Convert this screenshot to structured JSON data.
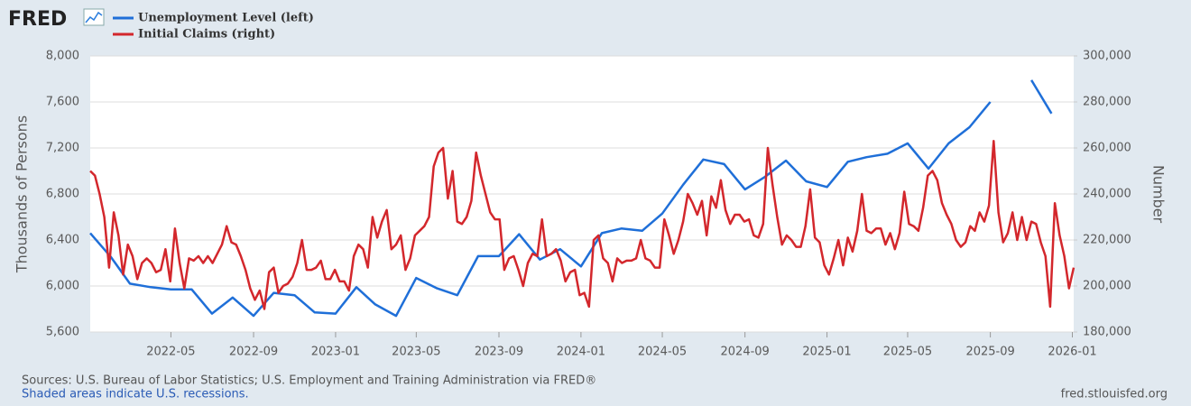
{
  "logo": "FRED",
  "chart_data": {
    "type": "line",
    "ylabel": "Thousands of Persons",
    "y2label": "Number",
    "xlim": [
      "2022-01-01",
      "2026-01-03"
    ],
    "xticks": [
      "2022-05",
      "2022-09",
      "2023-01",
      "2023-05",
      "2023-09",
      "2024-01",
      "2024-05",
      "2024-09",
      "2025-01",
      "2025-05",
      "2025-09",
      "2026-01"
    ],
    "ylim": [
      5600,
      8000
    ],
    "yticks": [
      {
        "value": 5600,
        "label": "5,600"
      },
      {
        "value": 6000,
        "label": "6,000"
      },
      {
        "value": 6400,
        "label": "6,400"
      },
      {
        "value": 6800,
        "label": "6,800"
      },
      {
        "value": 7200,
        "label": "7,200"
      },
      {
        "value": 7600,
        "label": "7,600"
      },
      {
        "value": 8000,
        "label": "8,000"
      }
    ],
    "y2lim": [
      180000,
      300000
    ],
    "y2ticks": [
      {
        "value": 180000,
        "label": "180,000"
      },
      {
        "value": 200000,
        "label": "200,000"
      },
      {
        "value": 220000,
        "label": "220,000"
      },
      {
        "value": 240000,
        "label": "240,000"
      },
      {
        "value": 260000,
        "label": "260,000"
      },
      {
        "value": 280000,
        "label": "280,000"
      },
      {
        "value": 300000,
        "label": "300,000"
      }
    ],
    "grid": true,
    "series": [
      {
        "name": "Unemployment Level (left)",
        "color": "#1f6fd8",
        "axis": "y",
        "x": [
          "2022-01",
          "2022-02",
          "2022-03",
          "2022-04",
          "2022-05",
          "2022-06",
          "2022-07",
          "2022-08",
          "2022-09",
          "2022-10",
          "2022-11",
          "2022-12",
          "2023-01",
          "2023-02",
          "2023-03",
          "2023-04",
          "2023-05",
          "2023-06",
          "2023-07",
          "2023-08",
          "2023-09",
          "2023-10",
          "2023-11",
          "2023-12",
          "2024-01",
          "2024-02",
          "2024-03",
          "2024-04",
          "2024-05",
          "2024-06",
          "2024-07",
          "2024-08",
          "2024-09",
          "2024-10",
          "2024-11",
          "2024-12",
          "2025-01",
          "2025-02",
          "2025-03",
          "2025-04",
          "2025-05",
          "2025-06",
          "2025-07",
          "2025-08",
          "2025-09",
          "2025-10",
          "2025-11",
          "2025-12"
        ],
        "values": [
          6460,
          6250,
          6020,
          5990,
          5970,
          5970,
          5760,
          5900,
          5740,
          5940,
          5920,
          5770,
          5760,
          5990,
          5840,
          5740,
          6070,
          5980,
          5920,
          6260,
          6260,
          6450,
          6230,
          6320,
          6170,
          6460,
          6500,
          6480,
          6630,
          6880,
          7100,
          7060,
          6840,
          6950,
          7090,
          6910,
          6860,
          7080,
          7120,
          7150,
          7240,
          7020,
          7240,
          7380,
          7600,
          null,
          7790,
          7500
        ]
      },
      {
        "name": "Initial Claims (right)",
        "color": "#d3272c",
        "axis": "y2",
        "x": [
          "2022-01-01",
          "2022-01-08",
          "2022-01-15",
          "2022-01-22",
          "2022-01-29",
          "2022-02-05",
          "2022-02-12",
          "2022-02-19",
          "2022-02-26",
          "2022-03-05",
          "2022-03-12",
          "2022-03-19",
          "2022-03-26",
          "2022-04-02",
          "2022-04-09",
          "2022-04-16",
          "2022-04-23",
          "2022-04-30",
          "2022-05-07",
          "2022-05-14",
          "2022-05-21",
          "2022-05-28",
          "2022-06-04",
          "2022-06-11",
          "2022-06-18",
          "2022-06-25",
          "2022-07-02",
          "2022-07-09",
          "2022-07-16",
          "2022-07-23",
          "2022-07-30",
          "2022-08-06",
          "2022-08-13",
          "2022-08-20",
          "2022-08-27",
          "2022-09-03",
          "2022-09-10",
          "2022-09-17",
          "2022-09-24",
          "2022-10-01",
          "2022-10-08",
          "2022-10-15",
          "2022-10-22",
          "2022-10-29",
          "2022-11-05",
          "2022-11-12",
          "2022-11-19",
          "2022-11-26",
          "2022-12-03",
          "2022-12-10",
          "2022-12-17",
          "2022-12-24",
          "2022-12-31",
          "2023-01-07",
          "2023-01-14",
          "2023-01-21",
          "2023-01-28",
          "2023-02-04",
          "2023-02-11",
          "2023-02-18",
          "2023-02-25",
          "2023-03-04",
          "2023-03-11",
          "2023-03-18",
          "2023-03-25",
          "2023-04-01",
          "2023-04-08",
          "2023-04-15",
          "2023-04-22",
          "2023-04-29",
          "2023-05-06",
          "2023-05-13",
          "2023-05-20",
          "2023-05-27",
          "2023-06-03",
          "2023-06-10",
          "2023-06-17",
          "2023-06-24",
          "2023-07-01",
          "2023-07-08",
          "2023-07-15",
          "2023-07-22",
          "2023-07-29",
          "2023-08-05",
          "2023-08-12",
          "2023-08-19",
          "2023-08-26",
          "2023-09-02",
          "2023-09-09",
          "2023-09-16",
          "2023-09-23",
          "2023-09-30",
          "2023-10-07",
          "2023-10-14",
          "2023-10-21",
          "2023-10-28",
          "2023-11-04",
          "2023-11-11",
          "2023-11-18",
          "2023-11-25",
          "2023-12-02",
          "2023-12-09",
          "2023-12-16",
          "2023-12-23",
          "2023-12-30",
          "2024-01-06",
          "2024-01-13",
          "2024-01-20",
          "2024-01-27",
          "2024-02-03",
          "2024-02-10",
          "2024-02-17",
          "2024-02-24",
          "2024-03-02",
          "2024-03-09",
          "2024-03-16",
          "2024-03-23",
          "2024-03-30",
          "2024-04-06",
          "2024-04-13",
          "2024-04-20",
          "2024-04-27",
          "2024-05-04",
          "2024-05-11",
          "2024-05-18",
          "2024-05-25",
          "2024-06-01",
          "2024-06-08",
          "2024-06-15",
          "2024-06-22",
          "2024-06-29",
          "2024-07-06",
          "2024-07-13",
          "2024-07-20",
          "2024-07-27",
          "2024-08-03",
          "2024-08-10",
          "2024-08-17",
          "2024-08-24",
          "2024-08-31",
          "2024-09-07",
          "2024-09-14",
          "2024-09-21",
          "2024-09-28",
          "2024-10-05",
          "2024-10-12",
          "2024-10-19",
          "2024-10-26",
          "2024-11-02",
          "2024-11-09",
          "2024-11-16",
          "2024-11-23",
          "2024-11-30",
          "2024-12-07",
          "2024-12-14",
          "2024-12-21",
          "2024-12-28",
          "2025-01-04",
          "2025-01-11",
          "2025-01-18",
          "2025-01-25",
          "2025-02-01",
          "2025-02-08",
          "2025-02-15",
          "2025-02-22",
          "2025-03-01",
          "2025-03-08",
          "2025-03-15",
          "2025-03-22",
          "2025-03-29",
          "2025-04-05",
          "2025-04-12",
          "2025-04-19",
          "2025-04-26",
          "2025-05-03",
          "2025-05-10",
          "2025-05-17",
          "2025-05-24",
          "2025-05-31",
          "2025-06-07",
          "2025-06-14",
          "2025-06-21",
          "2025-06-28",
          "2025-07-05",
          "2025-07-12",
          "2025-07-19",
          "2025-07-26",
          "2025-08-02",
          "2025-08-09",
          "2025-08-16",
          "2025-08-23",
          "2025-08-30",
          "2025-09-06",
          "2025-09-13",
          "2025-09-20",
          "2025-09-27",
          "2025-10-04",
          "2025-10-11",
          "2025-10-18",
          "2025-10-25",
          "2025-11-01",
          "2025-11-08",
          "2025-11-15",
          "2025-11-22",
          "2025-11-29",
          "2025-12-06",
          "2025-12-13",
          "2025-12-20",
          "2025-12-27",
          "2026-01-03"
        ],
        "values": [
          250000,
          248000,
          240000,
          230000,
          208000,
          232000,
          222000,
          205000,
          218000,
          213000,
          203000,
          210000,
          212000,
          210000,
          206000,
          207000,
          216000,
          202000,
          225000,
          210000,
          199000,
          212000,
          211000,
          213000,
          210000,
          213000,
          210000,
          214000,
          218000,
          226000,
          219000,
          218000,
          213000,
          207000,
          199000,
          194000,
          198000,
          190000,
          206000,
          208000,
          197000,
          200000,
          201000,
          204000,
          210000,
          220000,
          207000,
          207000,
          208000,
          211000,
          203000,
          203000,
          207000,
          202000,
          202000,
          198000,
          213000,
          218000,
          216000,
          208000,
          230000,
          221000,
          228000,
          233000,
          216000,
          218000,
          222000,
          207000,
          212000,
          222000,
          224000,
          226000,
          230000,
          252000,
          258000,
          260000,
          238000,
          250000,
          228000,
          227000,
          230000,
          237000,
          258000,
          248000,
          240000,
          232000,
          229000,
          229000,
          207000,
          212000,
          213000,
          207000,
          200000,
          210000,
          214000,
          213000,
          229000,
          213000,
          214000,
          216000,
          211000,
          202000,
          206000,
          207000,
          196000,
          197000,
          191000,
          220000,
          222000,
          212000,
          210000,
          202000,
          212000,
          210000,
          211000,
          211000,
          212000,
          220000,
          212000,
          211000,
          208000,
          208000,
          229000,
          222000,
          214000,
          220000,
          228000,
          240000,
          236000,
          231000,
          237000,
          222000,
          239000,
          234000,
          246000,
          233000,
          227000,
          231000,
          231000,
          228000,
          229000,
          222000,
          221000,
          227000,
          260000,
          244000,
          230000,
          218000,
          222000,
          220000,
          217000,
          217000,
          226000,
          242000,
          221000,
          219000,
          209000,
          205000,
          212000,
          220000,
          209000,
          221000,
          215000,
          224000,
          240000,
          224000,
          223000,
          225000,
          225000,
          218000,
          223000,
          216000,
          223000,
          241000,
          227000,
          226000,
          224000,
          234000,
          248000,
          250000,
          246000,
          236000,
          231000,
          227000,
          220000,
          217000,
          219000,
          226000,
          224000,
          232000,
          228000,
          235000,
          263000,
          232000,
          219000,
          223000,
          232000,
          220000,
          230000,
          220000,
          228000,
          227000,
          219000,
          213000,
          191000,
          236000,
          222000,
          213000,
          199000,
          208000
        ]
      }
    ]
  },
  "footer": {
    "sources": "Sources: U.S. Bureau of Labor Statistics; U.S. Employment and Training Administration via FRED®",
    "recessions": "Shaded areas indicate U.S. recessions.",
    "site": "fred.stlouisfed.org"
  }
}
